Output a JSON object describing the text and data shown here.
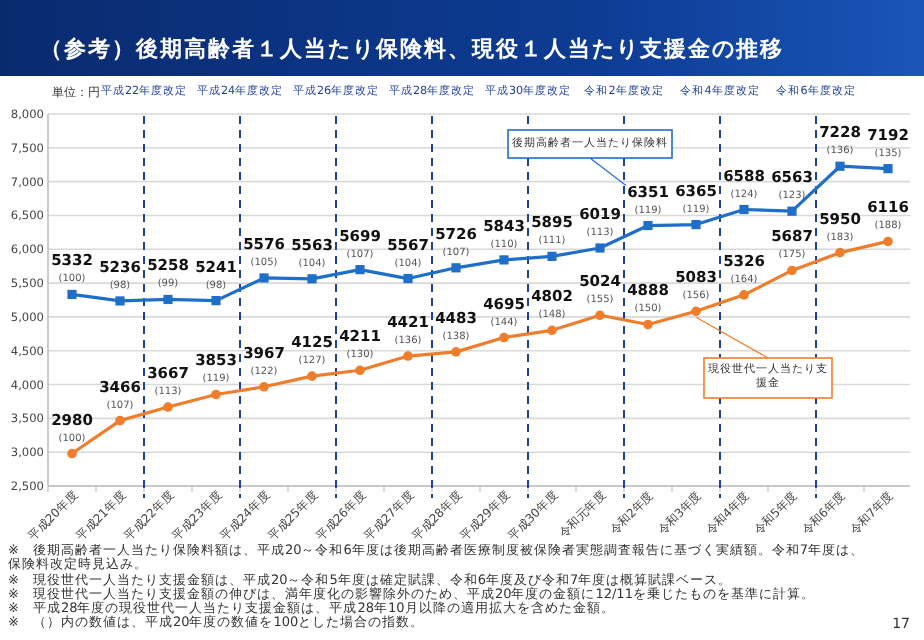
{
  "chart_data": {
    "type": "line",
    "title": "（参考）後期高齢者１人当たり保険料、現役１人当たり支援金の推移",
    "ylabel": "単位：円",
    "categories": [
      "平成20年度",
      "平成21年度",
      "平成22年度",
      "平成23年度",
      "平成24年度",
      "平成25年度",
      "平成26年度",
      "平成27年度",
      "平成28年度",
      "平成29年度",
      "平成30年度",
      "令和元年度",
      "令和2年度",
      "令和3年度",
      "令和4年度",
      "令和5年度",
      "令和6年度",
      "令和7年度"
    ],
    "series": [
      {
        "name": "後期高齢者一人当たり保険料",
        "color": "#1f6fc9",
        "marker": "square",
        "values": [
          5332,
          5236,
          5258,
          5241,
          5576,
          5563,
          5699,
          5567,
          5726,
          5843,
          5895,
          6019,
          6351,
          6365,
          6588,
          6563,
          7228,
          7192
        ]
      },
      {
        "name": "現役世代一人当たり支援金",
        "color": "#f07d2c",
        "marker": "circle",
        "values": [
          2980,
          3466,
          3667,
          3853,
          3967,
          4125,
          4211,
          4421,
          4483,
          4695,
          4802,
          5024,
          4888,
          5083,
          5326,
          5687,
          5950,
          6116
        ]
      }
    ],
    "data_labels": true,
    "ylim": [
      2500,
      8000
    ],
    "yticks": [
      {
        "value": 2500,
        "label": "2,500"
      },
      {
        "value": 3000,
        "label": "3,000"
      },
      {
        "value": 3500,
        "label": "3,500"
      },
      {
        "value": 4000,
        "label": "4,000"
      },
      {
        "value": 4500,
        "label": "4,500"
      },
      {
        "value": 5000,
        "label": "5,000"
      },
      {
        "value": 5500,
        "label": "5,500"
      },
      {
        "value": 6000,
        "label": "6,000"
      },
      {
        "value": 6500,
        "label": "6,500"
      },
      {
        "value": 7000,
        "label": "7,000"
      },
      {
        "value": 7500,
        "label": "7,500"
      },
      {
        "value": 8000,
        "label": "8,000"
      }
    ],
    "grid": "y",
    "annotations": [
      "平成22年度改定",
      "平成24年度改定",
      "平成26年度改定",
      "平成28年度改定",
      "平成30年度改定",
      "令和2年度改定",
      "令和4年度改定",
      "令和6年度改定",
      {
        "text": "(100)",
        "x": "平成20年度",
        "y": 5332
      },
      {
        "text": "(98)",
        "x": "平成21年度",
        "y": 5236
      },
      {
        "text": "(99)",
        "x": "平成22年度",
        "y": 5258
      },
      {
        "text": "(98)",
        "x": "平成23年度",
        "y": 5241
      },
      {
        "text": "(105)",
        "x": "平成24年度",
        "y": 5576
      },
      {
        "text": "(104)",
        "x": "平成25年度",
        "y": 5563
      },
      {
        "text": "(107)",
        "x": "平成26年度",
        "y": 5699
      },
      {
        "text": "(104)",
        "x": "平成27年度",
        "y": 5567
      },
      {
        "text": "(107)",
        "x": "平成28年度",
        "y": 5726
      },
      {
        "text": "(110)",
        "x": "平成29年度",
        "y": 5843
      },
      {
        "text": "(111)",
        "x": "平成30年度",
        "y": 5895
      },
      {
        "text": "(113)",
        "x": "令和元年度",
        "y": 6019
      },
      {
        "text": "(119)",
        "x": "令和2年度",
        "y": 6351
      },
      {
        "text": "(119)",
        "x": "令和3年度",
        "y": 6365
      },
      {
        "text": "(124)",
        "x": "令和4年度",
        "y": 6588
      },
      {
        "text": "(123)",
        "x": "令和5年度",
        "y": 6563
      },
      {
        "text": "(136)",
        "x": "令和6年度",
        "y": 7228
      },
      {
        "text": "(135)",
        "x": "令和7年度",
        "y": 7192
      },
      {
        "text": "(100)",
        "x": "平成20年度",
        "y": 2980
      },
      {
        "text": "(107)",
        "x": "平成21年度",
        "y": 3466
      },
      {
        "text": "(113)",
        "x": "平成22年度",
        "y": 3667
      },
      {
        "text": "(119)",
        "x": "平成23年度",
        "y": 3853
      },
      {
        "text": "(122)",
        "x": "平成24年度",
        "y": 3967
      },
      {
        "text": "(127)",
        "x": "平成25年度",
        "y": 4125
      },
      {
        "text": "(130)",
        "x": "平成26年度",
        "y": 4211
      },
      {
        "text": "(136)",
        "x": "平成27年度",
        "y": 4421
      },
      {
        "text": "(138)",
        "x": "平成28年度",
        "y": 4483
      },
      {
        "text": "(144)",
        "x": "平成29年度",
        "y": 4695
      },
      {
        "text": "(148)",
        "x": "平成30年度",
        "y": 4802
      },
      {
        "text": "(155)",
        "x": "令和元年度",
        "y": 5024
      },
      {
        "text": "(150)",
        "x": "令和2年度",
        "y": 4888
      },
      {
        "text": "(156)",
        "x": "令和3年度",
        "y": 5083
      },
      {
        "text": "(164)",
        "x": "令和4年度",
        "y": 5326
      },
      {
        "text": "(175)",
        "x": "令和5年度",
        "y": 5687
      },
      {
        "text": "(183)",
        "x": "令和6年度",
        "y": 5950
      },
      {
        "text": "(188)",
        "x": "令和7年度",
        "y": 6116
      },
      "※　後期高齢者一人当たり保険料額は、平成20～令和6年度は後期高齢者医療制度被保険者実態調査報告に基づく実績額。令和7年度は、保険料改定時見込み。",
      "※　現役世代一人当たり支援金額は、平成20～令和5年度は確定賦課、令和6年度及び令和7年度は概算賦課ベース。",
      "※　現役世代一人当たり支援金額の伸びは、満年度化の影響除外のため、平成20年度の金額に12/11を乗じたものを基準に計算。",
      "※　平成28年度の現役世代一人当たり支援金額は、平成28年10月以降の適用拡大を含めた金額。",
      "※　（）内の数値は、平成20年度の数値を100とした場合の指数。",
      "17"
    ]
  }
}
